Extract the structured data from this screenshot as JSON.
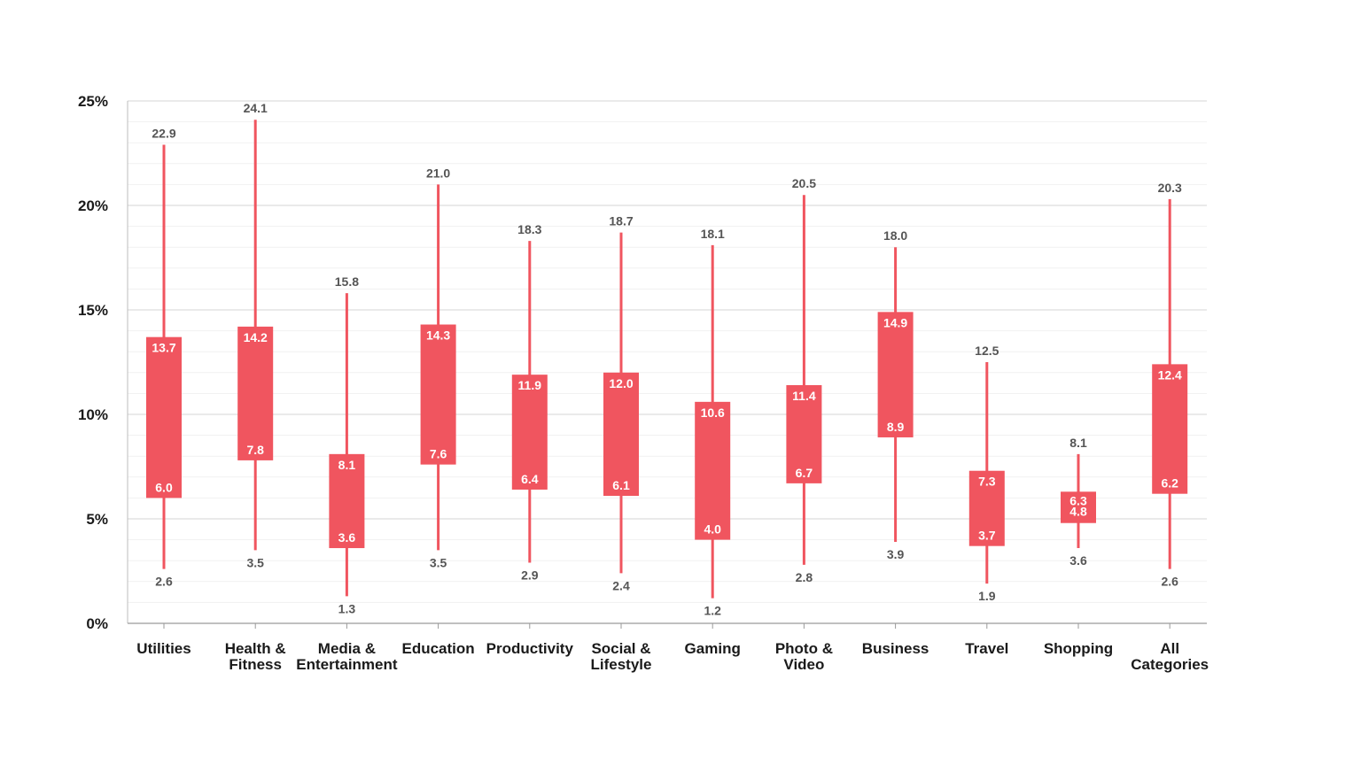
{
  "chart_data": {
    "type": "box",
    "title": "",
    "xlabel": "",
    "ylabel": "",
    "ylim": [
      0,
      25
    ],
    "y_ticks": [
      "0%",
      "5%",
      "10%",
      "15%",
      "20%",
      "25%"
    ],
    "y_tick_values": [
      0,
      5,
      10,
      15,
      20,
      25
    ],
    "grid": "horizontal",
    "color": "#f0555f",
    "categories": [
      [
        "Utilities"
      ],
      [
        "Health &",
        "Fitness"
      ],
      [
        "Media &",
        "Entertainment"
      ],
      [
        "Education"
      ],
      [
        "Productivity"
      ],
      [
        "Social &",
        "Lifestyle"
      ],
      [
        "Gaming"
      ],
      [
        "Photo &",
        "Video"
      ],
      [
        "Business"
      ],
      [
        "Travel"
      ],
      [
        "Shopping"
      ],
      [
        "All",
        "Categories"
      ]
    ],
    "series": [
      {
        "min": 2.6,
        "q1": 6.0,
        "q3": 13.7,
        "max": 22.9
      },
      {
        "min": 3.5,
        "q1": 7.8,
        "q3": 14.2,
        "max": 24.1
      },
      {
        "min": 1.3,
        "q1": 3.6,
        "q3": 8.1,
        "max": 15.8
      },
      {
        "min": 3.5,
        "q1": 7.6,
        "q3": 14.3,
        "max": 21.0
      },
      {
        "min": 2.9,
        "q1": 6.4,
        "q3": 11.9,
        "max": 18.3
      },
      {
        "min": 2.4,
        "q1": 6.1,
        "q3": 12.0,
        "max": 18.7
      },
      {
        "min": 1.2,
        "q1": 4.0,
        "q3": 10.6,
        "max": 18.1
      },
      {
        "min": 2.8,
        "q1": 6.7,
        "q3": 11.4,
        "max": 20.5
      },
      {
        "min": 3.9,
        "q1": 8.9,
        "q3": 14.9,
        "max": 18.0
      },
      {
        "min": 1.9,
        "q1": 3.7,
        "q3": 7.3,
        "max": 12.5
      },
      {
        "min": 3.6,
        "q1": 4.8,
        "q3": 6.3,
        "max": 8.1
      },
      {
        "min": 2.6,
        "q1": 6.2,
        "q3": 12.4,
        "max": 20.3
      }
    ]
  }
}
